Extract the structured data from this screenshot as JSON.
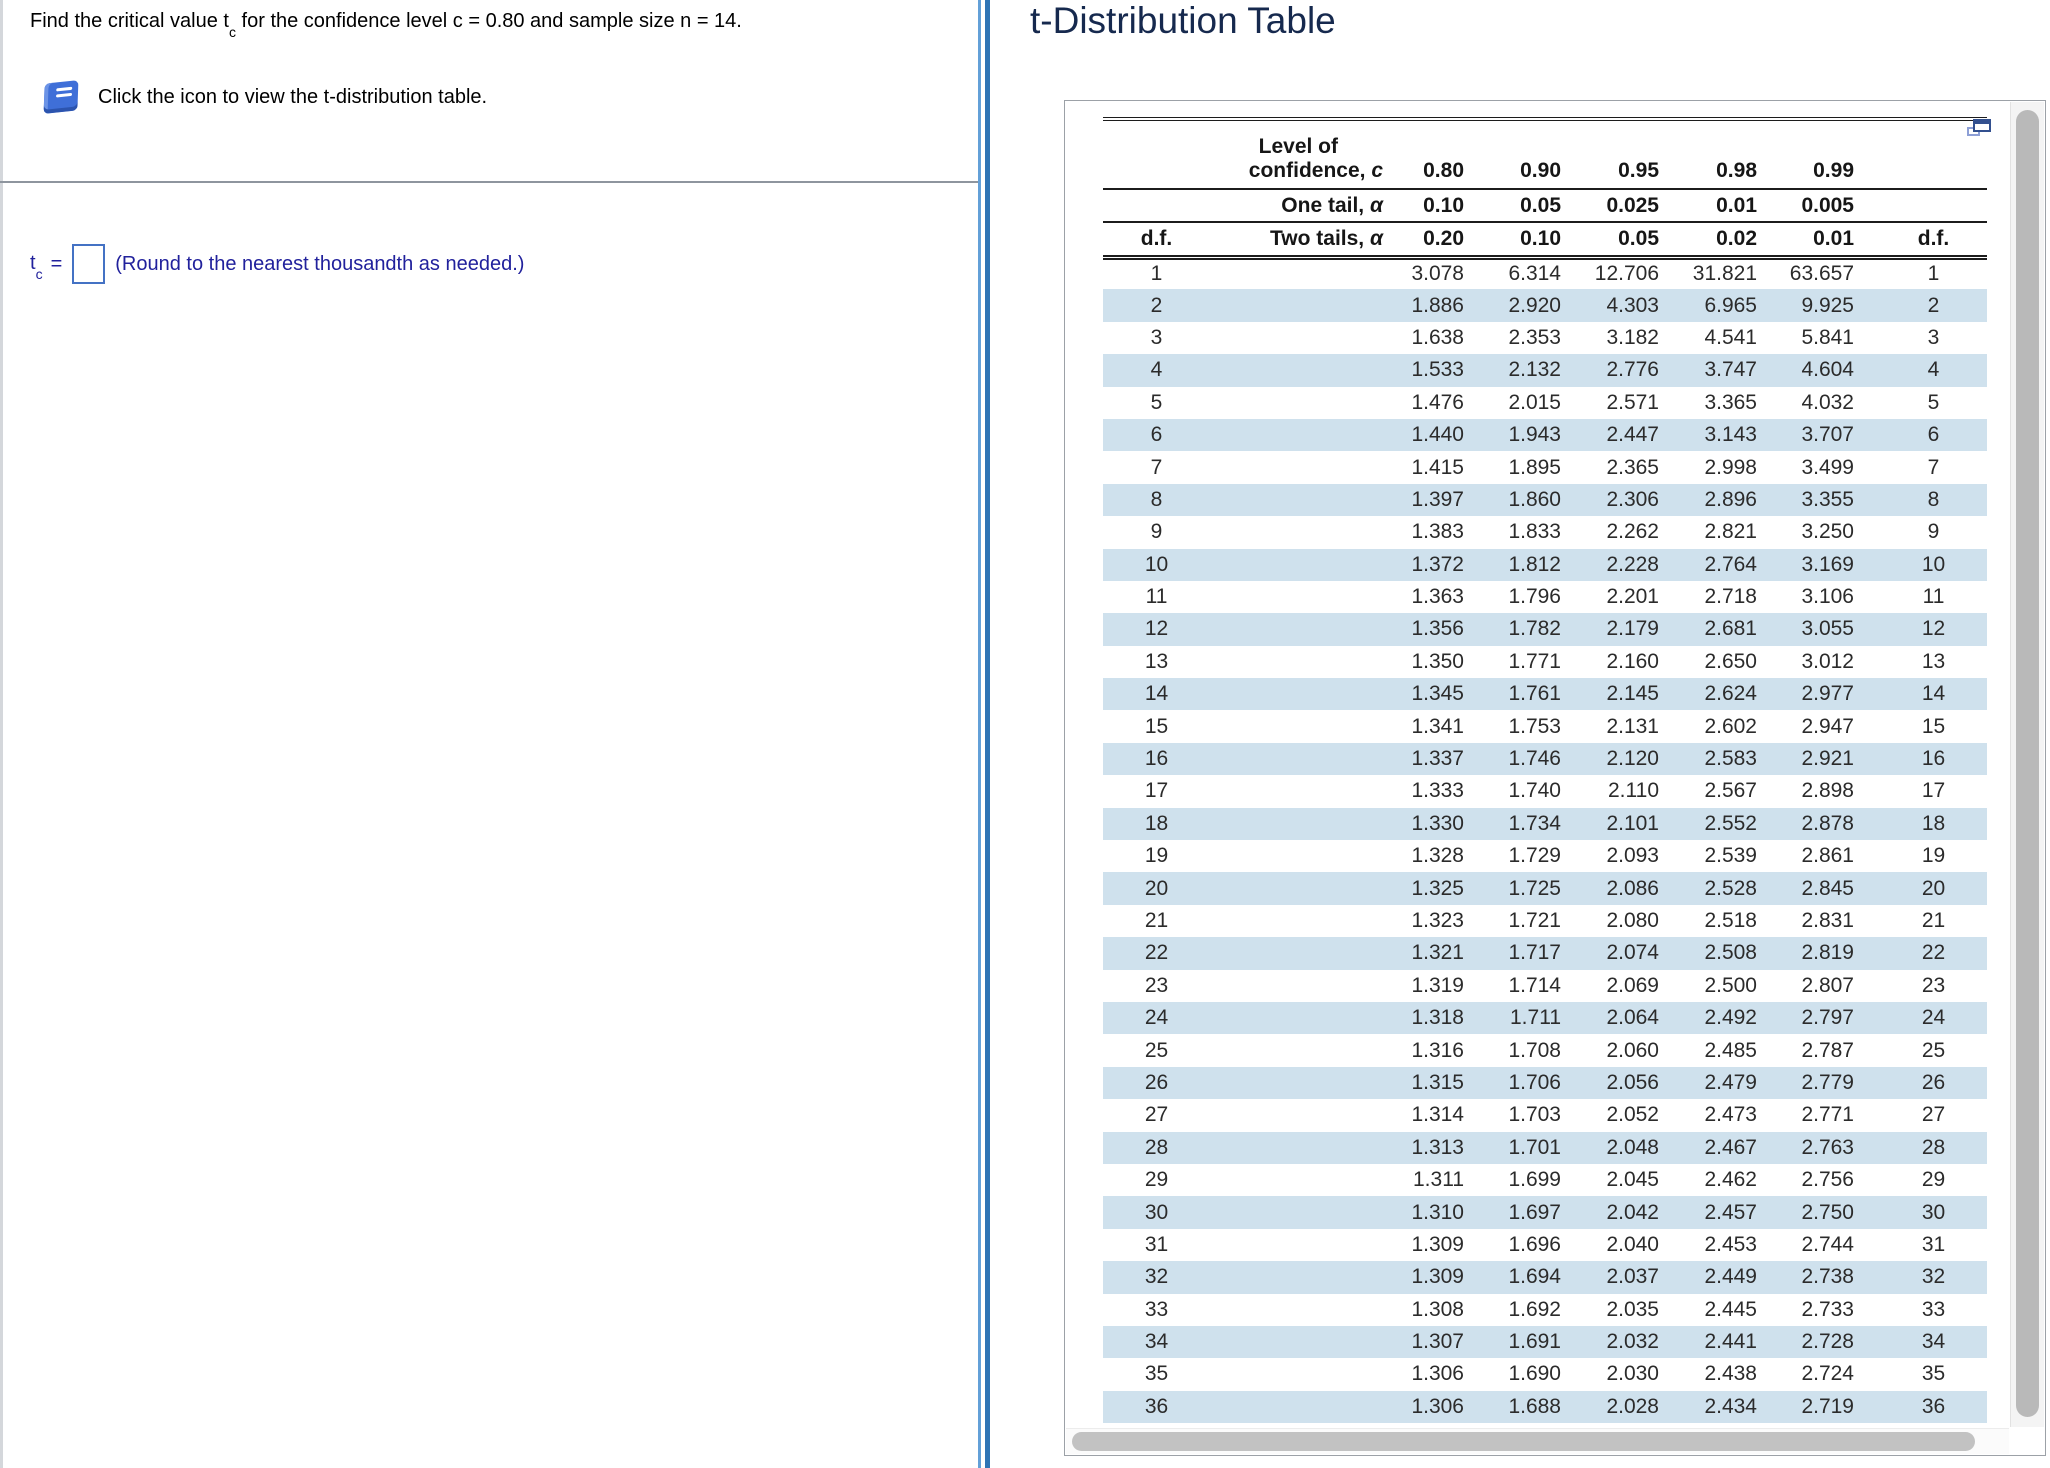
{
  "left_panel": {
    "question": {
      "p1": "Find the critical value t",
      "sub": "c",
      "p2": " for the confidence level c = 0.80 and sample size n = 14."
    },
    "icon_instruction": "Click the icon to view the t-distribution table.",
    "answer": {
      "t_label": "t",
      "t_sub": "c",
      "equals": "=",
      "value": "",
      "hint": "(Round to the nearest thousandth as needed.)"
    }
  },
  "table_panel": {
    "title": "t-Distribution Table",
    "header": {
      "level_line1": "Level of",
      "level_line2_prefix": "confidence, ",
      "c_symbol": "c",
      "one_tail_prefix": "One tail, ",
      "two_tails_prefix": "Two tails, ",
      "alpha_symbol": "α",
      "df_label_left": "d.f.",
      "df_label_right": "d.f.",
      "confidence_values": [
        "0.80",
        "0.90",
        "0.95",
        "0.98",
        "0.99"
      ],
      "one_tail_values": [
        "0.10",
        "0.05",
        "0.025",
        "0.01",
        "0.005"
      ],
      "two_tail_values": [
        "0.20",
        "0.10",
        "0.05",
        "0.02",
        "0.01"
      ]
    },
    "rows": [
      [
        "1",
        "3.078",
        "6.314",
        "12.706",
        "31.821",
        "63.657"
      ],
      [
        "2",
        "1.886",
        "2.920",
        "4.303",
        "6.965",
        "9.925"
      ],
      [
        "3",
        "1.638",
        "2.353",
        "3.182",
        "4.541",
        "5.841"
      ],
      [
        "4",
        "1.533",
        "2.132",
        "2.776",
        "3.747",
        "4.604"
      ],
      [
        "5",
        "1.476",
        "2.015",
        "2.571",
        "3.365",
        "4.032"
      ],
      [
        "6",
        "1.440",
        "1.943",
        "2.447",
        "3.143",
        "3.707"
      ],
      [
        "7",
        "1.415",
        "1.895",
        "2.365",
        "2.998",
        "3.499"
      ],
      [
        "8",
        "1.397",
        "1.860",
        "2.306",
        "2.896",
        "3.355"
      ],
      [
        "9",
        "1.383",
        "1.833",
        "2.262",
        "2.821",
        "3.250"
      ],
      [
        "10",
        "1.372",
        "1.812",
        "2.228",
        "2.764",
        "3.169"
      ],
      [
        "11",
        "1.363",
        "1.796",
        "2.201",
        "2.718",
        "3.106"
      ],
      [
        "12",
        "1.356",
        "1.782",
        "2.179",
        "2.681",
        "3.055"
      ],
      [
        "13",
        "1.350",
        "1.771",
        "2.160",
        "2.650",
        "3.012"
      ],
      [
        "14",
        "1.345",
        "1.761",
        "2.145",
        "2.624",
        "2.977"
      ],
      [
        "15",
        "1.341",
        "1.753",
        "2.131",
        "2.602",
        "2.947"
      ],
      [
        "16",
        "1.337",
        "1.746",
        "2.120",
        "2.583",
        "2.921"
      ],
      [
        "17",
        "1.333",
        "1.740",
        "2.110",
        "2.567",
        "2.898"
      ],
      [
        "18",
        "1.330",
        "1.734",
        "2.101",
        "2.552",
        "2.878"
      ],
      [
        "19",
        "1.328",
        "1.729",
        "2.093",
        "2.539",
        "2.861"
      ],
      [
        "20",
        "1.325",
        "1.725",
        "2.086",
        "2.528",
        "2.845"
      ],
      [
        "21",
        "1.323",
        "1.721",
        "2.080",
        "2.518",
        "2.831"
      ],
      [
        "22",
        "1.321",
        "1.717",
        "2.074",
        "2.508",
        "2.819"
      ],
      [
        "23",
        "1.319",
        "1.714",
        "2.069",
        "2.500",
        "2.807"
      ],
      [
        "24",
        "1.318",
        "1.711",
        "2.064",
        "2.492",
        "2.797"
      ],
      [
        "25",
        "1.316",
        "1.708",
        "2.060",
        "2.485",
        "2.787"
      ],
      [
        "26",
        "1.315",
        "1.706",
        "2.056",
        "2.479",
        "2.779"
      ],
      [
        "27",
        "1.314",
        "1.703",
        "2.052",
        "2.473",
        "2.771"
      ],
      [
        "28",
        "1.313",
        "1.701",
        "2.048",
        "2.467",
        "2.763"
      ],
      [
        "29",
        "1.311",
        "1.699",
        "2.045",
        "2.462",
        "2.756"
      ],
      [
        "30",
        "1.310",
        "1.697",
        "2.042",
        "2.457",
        "2.750"
      ],
      [
        "31",
        "1.309",
        "1.696",
        "2.040",
        "2.453",
        "2.744"
      ],
      [
        "32",
        "1.309",
        "1.694",
        "2.037",
        "2.449",
        "2.738"
      ],
      [
        "33",
        "1.308",
        "1.692",
        "2.035",
        "2.445",
        "2.733"
      ],
      [
        "34",
        "1.307",
        "1.691",
        "2.032",
        "2.441",
        "2.728"
      ],
      [
        "35",
        "1.306",
        "1.690",
        "2.030",
        "2.438",
        "2.724"
      ],
      [
        "36",
        "1.306",
        "1.688",
        "2.028",
        "2.434",
        "2.719"
      ]
    ]
  },
  "colors": {
    "answer_navy": "#21219c",
    "title_navy": "#16294e",
    "row_band_blue": "#cfe1ed",
    "divider_blue_thick": "#2e74b5",
    "divider_blue_thin": "#63a0d8",
    "input_border_blue": "#4472c4",
    "book_icon_blue": "#3f6fd8",
    "scrollbar_gray": "#b9b9b9"
  }
}
